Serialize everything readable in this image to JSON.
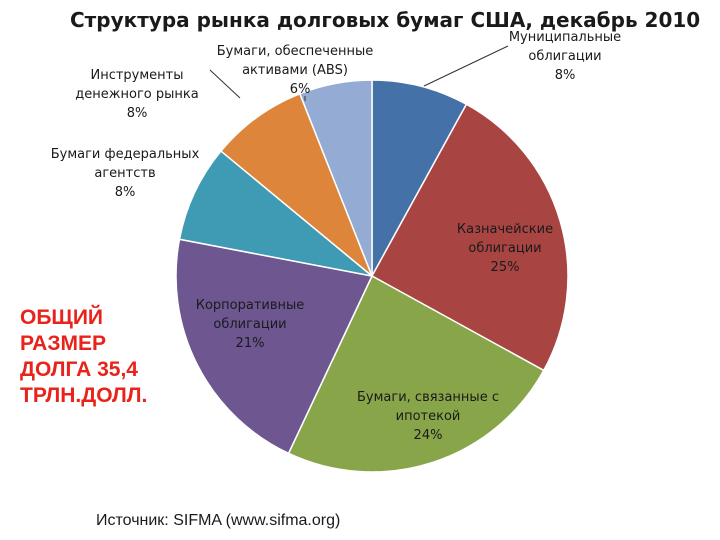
{
  "chart_data": {
    "type": "pie",
    "title": "Структура рынка долговых бумаг США, декабрь 2010",
    "slices": [
      {
        "label_lines": [
          "Муниципальные",
          "облигации"
        ],
        "value_label": "8%",
        "value": 8,
        "color": "#4472a8"
      },
      {
        "label_lines": [
          "Казначейские",
          "облигации"
        ],
        "value_label": "25%",
        "value": 25,
        "color": "#a84543"
      },
      {
        "label_lines": [
          "Бумаги, связанные с",
          "ипотекой"
        ],
        "value_label": "24%",
        "value": 24,
        "color": "#88a54a"
      },
      {
        "label_lines": [
          "Корпоративные",
          "облигации"
        ],
        "value_label": "21%",
        "value": 21,
        "color": "#6e5791"
      },
      {
        "label_lines": [
          "Бумаги федеральных",
          "агентств"
        ],
        "value_label": "8%",
        "value": 8,
        "color": "#3f9ab3"
      },
      {
        "label_lines": [
          "Инструменты",
          "денежного рынка"
        ],
        "value_label": "8%",
        "value": 8,
        "color": "#dc853b"
      },
      {
        "label_lines": [
          "Бумаги, обеспеченные",
          "активами (ABS)"
        ],
        "value_label": "6%",
        "value": 6,
        "color": "#94abd3"
      }
    ]
  },
  "total_lines": [
    "ОБЩИЙ",
    "РАЗМЕР",
    "ДОЛГА 35,4",
    "ТРЛН.ДОЛЛ."
  ],
  "source": "Источник: SIFMA (www.sifma.org)"
}
